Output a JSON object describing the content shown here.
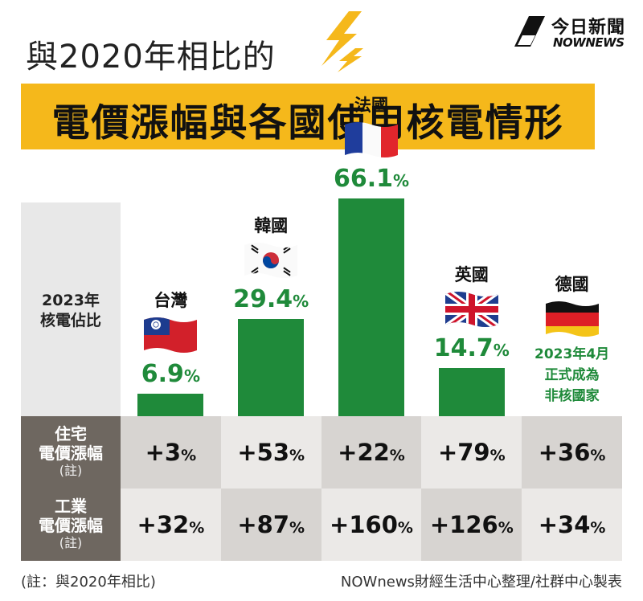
{
  "header": {
    "subtitle": "與2020年相比的",
    "title": "電價漲幅與各國使用核電情形"
  },
  "logo": {
    "cn": "今日新聞",
    "en": "NOWNEWS"
  },
  "chart_data": {
    "type": "bar",
    "row_label_top": [
      "2023年",
      "核電佔比"
    ],
    "categories": [
      "台灣",
      "韓國",
      "法國",
      "英國",
      "德國"
    ],
    "values": [
      6.9,
      29.4,
      66.1,
      14.7,
      null
    ],
    "value_labels": [
      "6.9",
      "29.4",
      "66.1",
      "14.7",
      ""
    ],
    "unit": "%",
    "ylim": [
      0,
      70
    ],
    "bar_color": "#1f8a3a",
    "germany_note": [
      "2023年4月",
      "正式成為",
      "非核國家"
    ],
    "flags": [
      "taiwan-flag-icon",
      "korea-flag-icon",
      "france-flag-icon",
      "uk-flag-icon",
      "germany-flag-icon"
    ]
  },
  "table": {
    "rows": [
      {
        "label": [
          "住宅",
          "電價漲幅"
        ],
        "note": "(註)",
        "values": [
          "+3",
          "+53",
          "+22",
          "+79",
          "+36"
        ]
      },
      {
        "label": [
          "工業",
          "電價漲幅"
        ],
        "note": "(註)",
        "values": [
          "+32",
          "+87",
          "+160",
          "+126",
          "+34"
        ]
      }
    ],
    "unit": "%"
  },
  "footer": {
    "note": "(註：與2020年相比)",
    "credit": "NOWnews財經生活中心整理/社群中心製表"
  },
  "colors": {
    "accent": "#f5b81b",
    "green": "#1f8a3a",
    "label_bg": "#6e6760"
  }
}
